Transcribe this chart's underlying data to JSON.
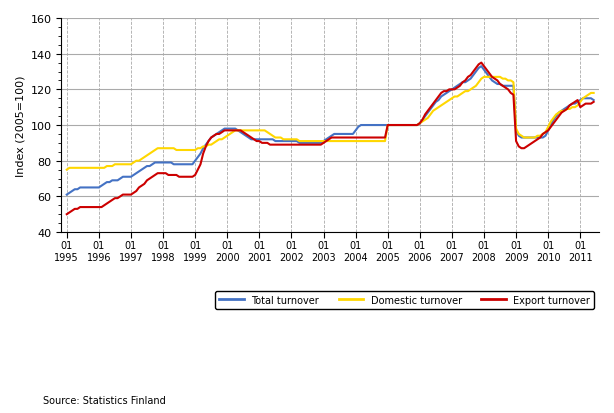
{
  "ylabel": "Index (2005=100)",
  "source_text": "Source: Statistics Finland",
  "ylim": [
    40,
    160
  ],
  "yticks": [
    40,
    60,
    80,
    100,
    120,
    140,
    160
  ],
  "colors": {
    "total": "#4472C4",
    "domestic": "#FFD700",
    "export": "#CC0000"
  },
  "legend_labels": [
    "Total turnover",
    "Domestic turnover",
    "Export turnover"
  ],
  "x_year_labels": [
    "1995",
    "1996",
    "1997",
    "1998",
    "1999",
    "2000",
    "2001",
    "2002",
    "2003",
    "2004",
    "2005",
    "2006",
    "2007",
    "2008",
    "2009",
    "2010",
    "2011"
  ],
  "background_color": "#ffffff",
  "grid_color": "#aaaaaa",
  "total_turnover": [
    61,
    62,
    63,
    64,
    64,
    65,
    65,
    65,
    65,
    65,
    65,
    65,
    65,
    66,
    67,
    68,
    68,
    69,
    69,
    69,
    70,
    71,
    71,
    71,
    71,
    72,
    73,
    74,
    75,
    76,
    77,
    77,
    78,
    79,
    79,
    79,
    79,
    79,
    79,
    79,
    78,
    78,
    78,
    78,
    78,
    78,
    78,
    78,
    80,
    82,
    84,
    87,
    89,
    91,
    93,
    94,
    95,
    96,
    97,
    98,
    98,
    98,
    98,
    98,
    97,
    96,
    95,
    94,
    93,
    92,
    92,
    92,
    92,
    92,
    92,
    92,
    92,
    92,
    91,
    91,
    91,
    91,
    91,
    91,
    91,
    91,
    91,
    90,
    90,
    90,
    90,
    90,
    90,
    90,
    90,
    90,
    91,
    92,
    93,
    94,
    95,
    95,
    95,
    95,
    95,
    95,
    95,
    95,
    97,
    99,
    100,
    100,
    100,
    100,
    100,
    100,
    100,
    100,
    100,
    100,
    100,
    100,
    100,
    100,
    100,
    100,
    100,
    100,
    100,
    100,
    100,
    100,
    101,
    103,
    105,
    107,
    109,
    111,
    113,
    114,
    116,
    117,
    118,
    119,
    120,
    121,
    122,
    123,
    124,
    124,
    125,
    126,
    128,
    130,
    132,
    133,
    131,
    129,
    127,
    125,
    124,
    123,
    123,
    122,
    122,
    122,
    122,
    122,
    97,
    94,
    93,
    93,
    93,
    93,
    93,
    93,
    93,
    93,
    93,
    94,
    97,
    100,
    103,
    105,
    107,
    108,
    109,
    110,
    111,
    112,
    112,
    113,
    114,
    115,
    115,
    115,
    115,
    114
  ],
  "domestic_turnover": [
    75,
    76,
    76,
    76,
    76,
    76,
    76,
    76,
    76,
    76,
    76,
    76,
    76,
    76,
    76,
    77,
    77,
    77,
    78,
    78,
    78,
    78,
    78,
    78,
    78,
    79,
    80,
    80,
    81,
    82,
    83,
    84,
    85,
    86,
    87,
    87,
    87,
    87,
    87,
    87,
    87,
    86,
    86,
    86,
    86,
    86,
    86,
    86,
    86,
    87,
    87,
    88,
    88,
    89,
    89,
    90,
    91,
    92,
    92,
    93,
    94,
    95,
    96,
    97,
    97,
    97,
    97,
    97,
    97,
    97,
    97,
    97,
    97,
    97,
    97,
    96,
    95,
    94,
    93,
    93,
    93,
    92,
    92,
    92,
    92,
    92,
    92,
    91,
    91,
    91,
    91,
    91,
    91,
    91,
    91,
    91,
    91,
    91,
    91,
    91,
    91,
    91,
    91,
    91,
    91,
    91,
    91,
    91,
    91,
    91,
    91,
    91,
    91,
    91,
    91,
    91,
    91,
    91,
    91,
    91,
    100,
    100,
    100,
    100,
    100,
    100,
    100,
    100,
    100,
    100,
    100,
    100,
    101,
    102,
    103,
    104,
    106,
    108,
    109,
    110,
    111,
    112,
    113,
    114,
    115,
    116,
    116,
    117,
    118,
    119,
    119,
    120,
    121,
    122,
    124,
    126,
    127,
    127,
    127,
    127,
    127,
    127,
    127,
    126,
    126,
    125,
    125,
    124,
    98,
    95,
    94,
    93,
    93,
    93,
    93,
    93,
    94,
    94,
    95,
    96,
    99,
    102,
    104,
    106,
    107,
    108,
    108,
    109,
    109,
    110,
    110,
    111,
    113,
    115,
    116,
    117,
    118,
    118
  ],
  "export_turnover": [
    50,
    51,
    52,
    53,
    53,
    54,
    54,
    54,
    54,
    54,
    54,
    54,
    54,
    54,
    55,
    56,
    57,
    58,
    59,
    59,
    60,
    61,
    61,
    61,
    61,
    62,
    63,
    65,
    66,
    67,
    69,
    70,
    71,
    72,
    73,
    73,
    73,
    73,
    72,
    72,
    72,
    72,
    71,
    71,
    71,
    71,
    71,
    71,
    72,
    75,
    78,
    84,
    88,
    91,
    93,
    94,
    95,
    95,
    96,
    97,
    97,
    97,
    97,
    97,
    97,
    97,
    96,
    95,
    94,
    93,
    92,
    91,
    91,
    90,
    90,
    90,
    89,
    89,
    89,
    89,
    89,
    89,
    89,
    89,
    89,
    89,
    89,
    89,
    89,
    89,
    89,
    89,
    89,
    89,
    89,
    89,
    90,
    91,
    92,
    93,
    93,
    93,
    93,
    93,
    93,
    93,
    93,
    93,
    93,
    93,
    93,
    93,
    93,
    93,
    93,
    93,
    93,
    93,
    93,
    93,
    100,
    100,
    100,
    100,
    100,
    100,
    100,
    100,
    100,
    100,
    100,
    100,
    101,
    103,
    106,
    108,
    110,
    112,
    114,
    116,
    118,
    119,
    119,
    120,
    120,
    120,
    121,
    122,
    124,
    125,
    127,
    128,
    130,
    132,
    134,
    135,
    133,
    131,
    129,
    127,
    126,
    125,
    123,
    122,
    121,
    120,
    118,
    117,
    91,
    88,
    87,
    87,
    88,
    89,
    90,
    91,
    92,
    93,
    95,
    96,
    97,
    99,
    101,
    103,
    105,
    107,
    108,
    109,
    111,
    112,
    113,
    114,
    110,
    111,
    112,
    112,
    112,
    113
  ]
}
